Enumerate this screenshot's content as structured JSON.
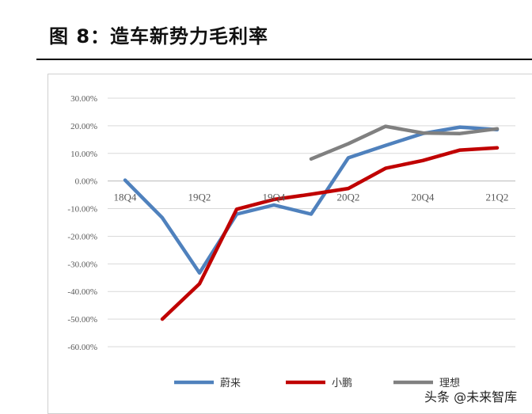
{
  "figure": {
    "title": "图 8：造车新势力毛利率",
    "watermark": "头条 @未来智库"
  },
  "chart_data": {
    "type": "line",
    "title": "图 8：造车新势力毛利率",
    "y_ticks": [
      "30.00%",
      "20.00%",
      "10.00%",
      "0.00%",
      "-10.00%",
      "-20.00%",
      "-30.00%",
      "-40.00%",
      "-50.00%",
      "-60.00%"
    ],
    "ylim": [
      -60,
      30
    ],
    "y_unit": "%",
    "x_ticks": [
      "18Q4",
      "19Q2",
      "19Q4",
      "20Q2",
      "20Q4",
      "21Q2"
    ],
    "categories": [
      "18Q4",
      "19Q1",
      "19Q2",
      "19Q3",
      "19Q4",
      "20Q1",
      "20Q2",
      "20Q3",
      "20Q4",
      "21Q1",
      "21Q2"
    ],
    "series": [
      {
        "name": "蔚来",
        "color": "#4f81bd",
        "values": [
          0.3,
          -13.3,
          -33.3,
          -12.0,
          -8.7,
          -12.0,
          8.4,
          12.9,
          17.2,
          19.5,
          18.6
        ]
      },
      {
        "name": "小鹏",
        "color": "#c00000",
        "values": [
          null,
          -50.0,
          -37.2,
          -10.2,
          -6.7,
          -4.8,
          -2.7,
          4.6,
          7.4,
          11.2,
          12.0
        ]
      },
      {
        "name": "理想",
        "color": "#808080",
        "values": [
          null,
          null,
          null,
          null,
          null,
          8.0,
          13.5,
          19.8,
          17.4,
          17.2,
          18.9
        ]
      }
    ],
    "grid": true,
    "legend_position": "bottom"
  }
}
